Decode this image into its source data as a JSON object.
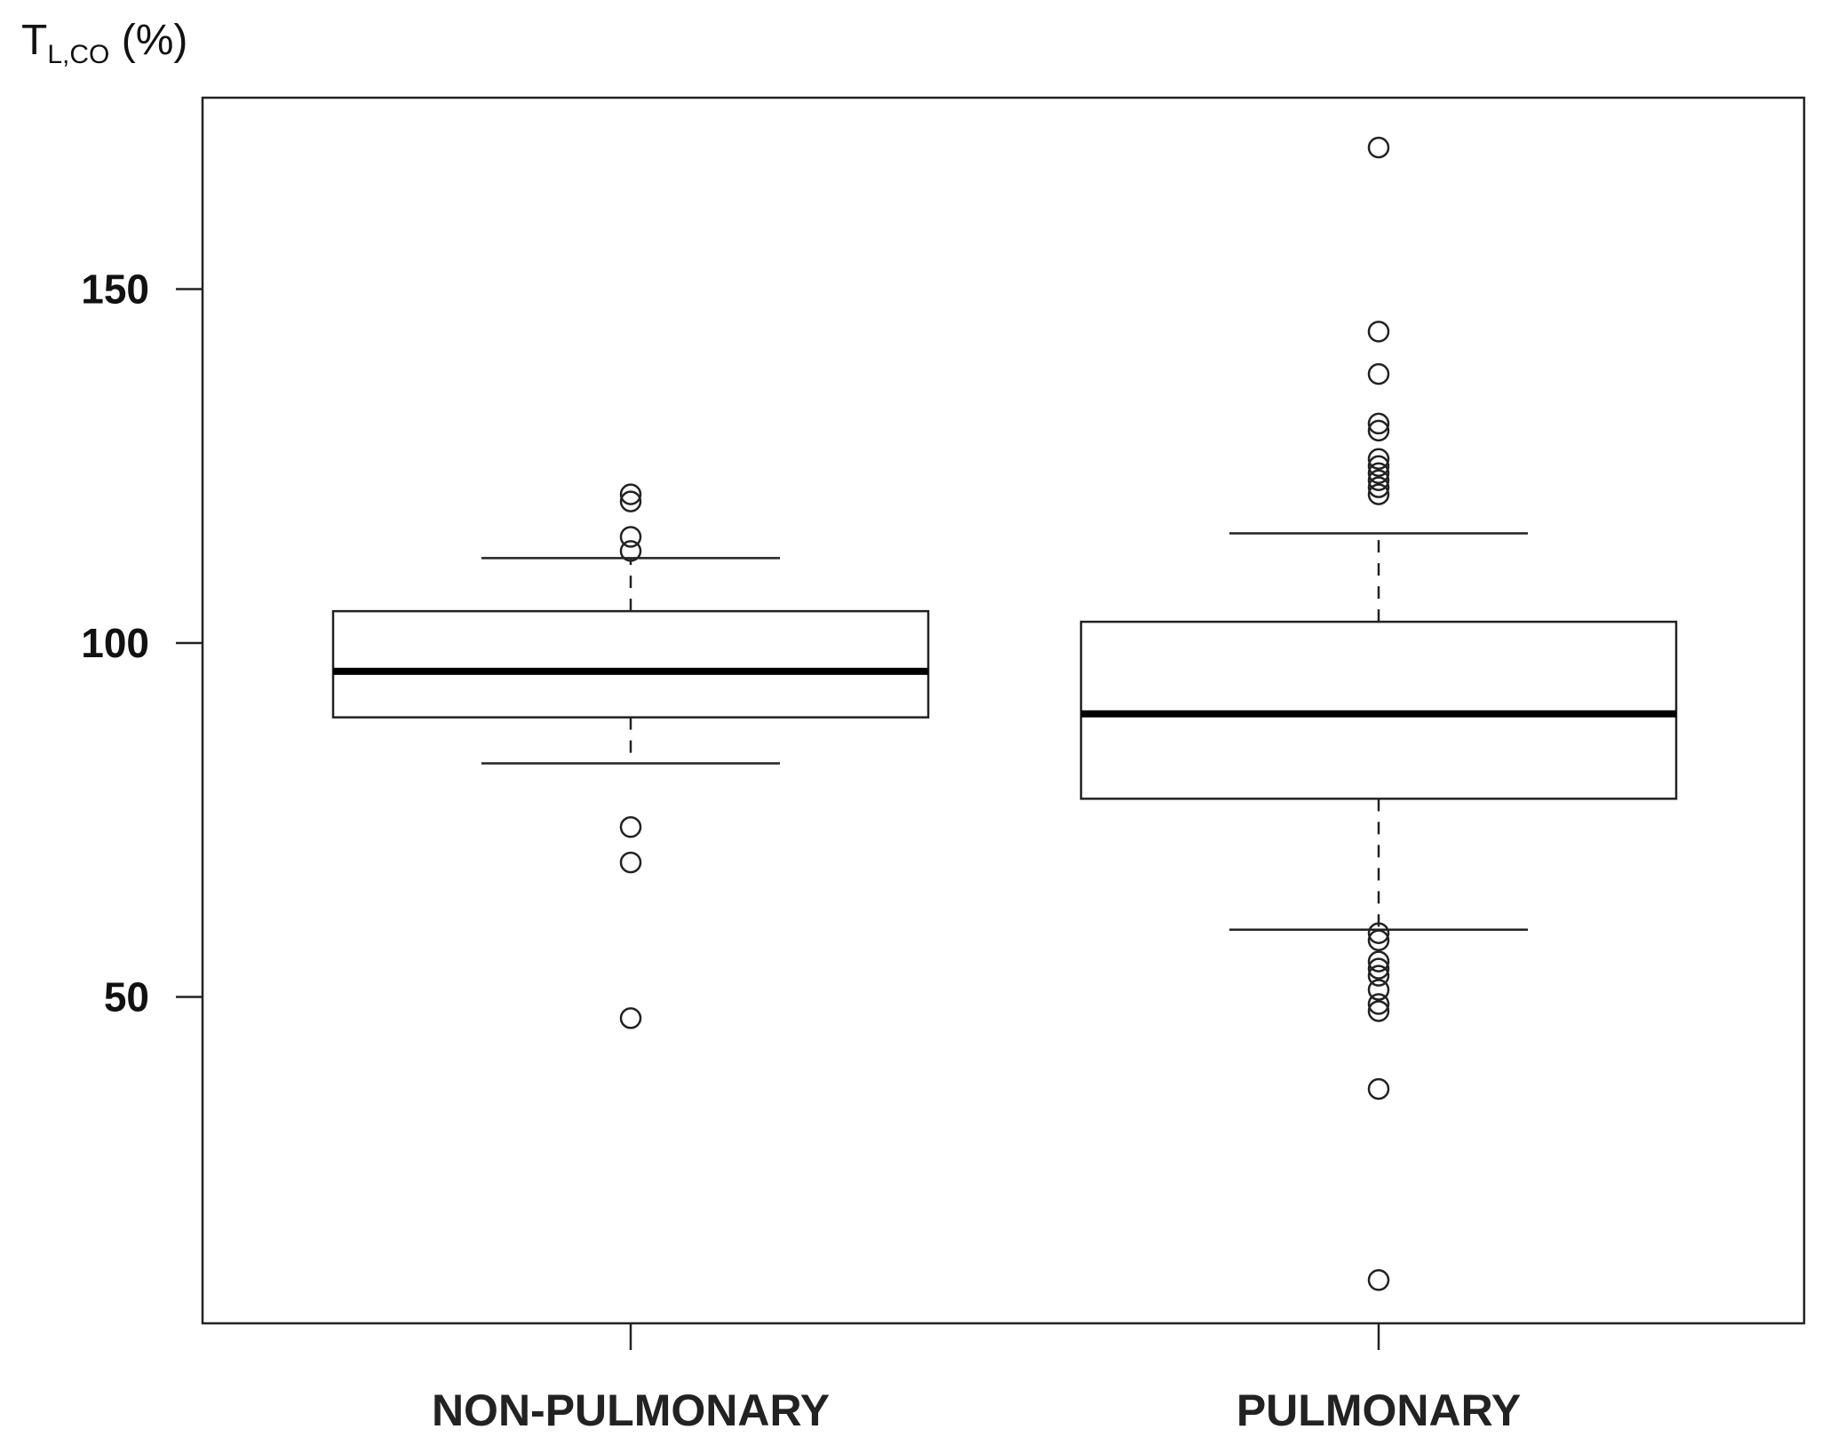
{
  "chart_data": {
    "type": "boxplot",
    "ylabel": {
      "main": "T",
      "sub": "L,CO",
      "unit": "(%)"
    },
    "ylim": [
      3,
      175
    ],
    "yticks": [
      50,
      100,
      150
    ],
    "categories": [
      "NON-PULMONARY",
      "PULMONARY"
    ],
    "boxes": [
      {
        "name": "NON-PULMONARY",
        "whisker_low": 83,
        "q1": 89.5,
        "median": 96,
        "q3": 104.5,
        "whisker_high": 112,
        "outliers": [
          121,
          120,
          115,
          113,
          74,
          69,
          47
        ]
      },
      {
        "name": "PULMONARY",
        "whisker_low": 59.5,
        "q1": 78,
        "median": 90,
        "q3": 103,
        "whisker_high": 115.5,
        "outliers": [
          170,
          144,
          138,
          131,
          130,
          126,
          125,
          124,
          123,
          122,
          121,
          59,
          58,
          55,
          54,
          53,
          51,
          49,
          48,
          37,
          10
        ]
      }
    ]
  }
}
